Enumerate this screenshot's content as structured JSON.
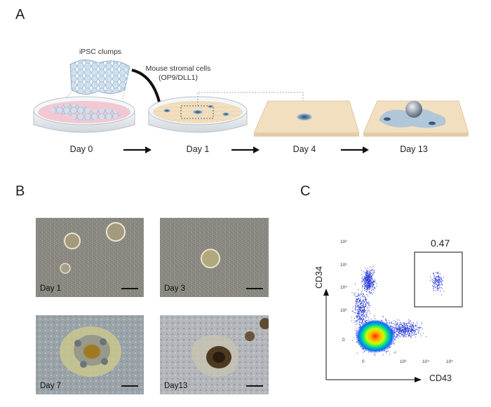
{
  "panels": {
    "a": {
      "letter": "A",
      "ipsc_label": "iPSC clumps",
      "stromal_label_1": "Mouse stromal cells",
      "stromal_label_2": "(OP9/DLL1)",
      "days": [
        "Day 0",
        "Day 1",
        "Day 4",
        "Day 13"
      ]
    },
    "b": {
      "letter": "B",
      "images": [
        {
          "label": "Day 1"
        },
        {
          "label": "Day 3"
        },
        {
          "label": "Day 7"
        },
        {
          "label": "Day13"
        }
      ]
    },
    "c": {
      "letter": "C",
      "gate_value": "0.47",
      "y_axis_label": "CD34",
      "x_axis_label": "CD43",
      "y_ticks": [
        "10⁵",
        "10⁴",
        "10³",
        "0"
      ],
      "y_top_tick": "10⁶",
      "x_ticks": [
        "0",
        "10³",
        "10⁴",
        "10⁵"
      ]
    }
  },
  "colors": {
    "dish_pink": "#f2c8d2",
    "stroma_tan": "#f1dfbf",
    "colony_blue": "#7fa6c8",
    "scatter_blue": "#2b3bd6"
  }
}
